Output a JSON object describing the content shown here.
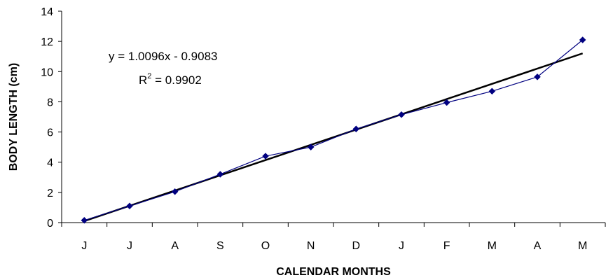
{
  "chart_data": {
    "type": "line",
    "xlabel": "CALENDAR MONTHS",
    "ylabel": "BODY LENGTH (cm)",
    "categories": [
      "J",
      "J",
      "A",
      "S",
      "O",
      "N",
      "D",
      "J",
      "F",
      "M",
      "A",
      "M"
    ],
    "ylim": [
      0,
      14
    ],
    "yticks": [
      0,
      2,
      4,
      6,
      8,
      10,
      12,
      14
    ],
    "series": [
      {
        "values": [
          0.15,
          1.1,
          2.05,
          3.2,
          4.4,
          5.0,
          6.2,
          7.15,
          7.95,
          8.7,
          9.65,
          12.1
        ],
        "color": "#000080",
        "marker": "diamond"
      }
    ],
    "trendline": {
      "type": "linear",
      "slope": 1.0096,
      "intercept": -0.9083,
      "color": "#000000",
      "equation": "y = 1.0096x - 0.9083",
      "r2_prefix": "R",
      "r2_superscript": "2",
      "r2_suffix": " = 0.9902"
    },
    "grid": false,
    "legend": "none"
  }
}
